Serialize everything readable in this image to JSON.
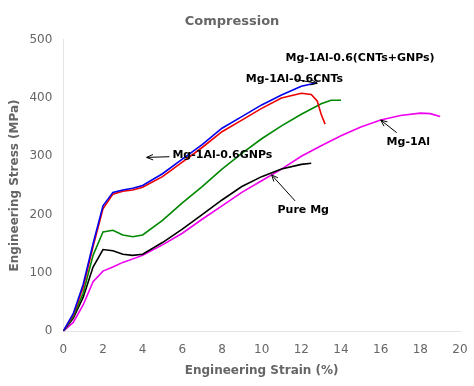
{
  "chart_data": {
    "type": "line",
    "title": "Compression",
    "xlabel": "Engineering Strain (%)",
    "ylabel": "Engineering Stress (MPa)",
    "xlim": [
      0,
      20
    ],
    "ylim": [
      0,
      500
    ],
    "xticks": [
      0,
      2,
      4,
      6,
      8,
      10,
      12,
      14,
      16,
      18,
      20
    ],
    "yticks": [
      0,
      100,
      200,
      300,
      400,
      500
    ],
    "grid": false,
    "series": [
      {
        "color": "#0000EE",
        "x": [
          0,
          0.5,
          1.0,
          1.5,
          2.0,
          2.5,
          3.0,
          3.5,
          4.0,
          5.0,
          6.0,
          7.0,
          8.0,
          9.0,
          10.0,
          11.0,
          12.0,
          12.8
        ],
        "values": [
          0,
          30,
          80,
          150,
          215,
          238,
          242,
          245,
          250,
          270,
          295,
          320,
          348,
          368,
          388,
          405,
          420,
          426
        ]
      },
      {
        "color": "#EE0000",
        "x": [
          0,
          0.5,
          1.0,
          1.5,
          2.0,
          2.5,
          3.0,
          3.5,
          4.0,
          5.0,
          6.0,
          7.0,
          8.0,
          9.0,
          10.0,
          11.0,
          12.0,
          12.5,
          12.8,
          13.0,
          13.2
        ],
        "values": [
          0,
          28,
          75,
          145,
          210,
          235,
          240,
          242,
          247,
          265,
          290,
          315,
          342,
          362,
          382,
          400,
          408,
          406,
          395,
          372,
          355
        ]
      },
      {
        "color": "#008800",
        "x": [
          0,
          0.5,
          1.0,
          1.5,
          2.0,
          2.5,
          3.0,
          3.5,
          4.0,
          5.0,
          6.0,
          7.0,
          8.0,
          9.0,
          10.0,
          11.0,
          12.0,
          13.0,
          13.5,
          14.0
        ],
        "values": [
          0,
          25,
          65,
          130,
          170,
          173,
          165,
          162,
          165,
          190,
          220,
          248,
          278,
          305,
          330,
          352,
          372,
          390,
          396,
          396
        ]
      },
      {
        "color": "#000000",
        "x": [
          0,
          0.5,
          1.0,
          1.5,
          2.0,
          2.5,
          3.0,
          3.5,
          4.0,
          5.0,
          6.0,
          7.0,
          8.0,
          9.0,
          10.0,
          11.0,
          12.0,
          12.5
        ],
        "values": [
          0,
          22,
          58,
          110,
          140,
          138,
          132,
          130,
          132,
          152,
          175,
          200,
          225,
          248,
          265,
          278,
          286,
          288
        ]
      },
      {
        "color": "#EE00EE",
        "x": [
          0,
          0.5,
          1.0,
          1.5,
          2.0,
          2.5,
          3.0,
          4.0,
          5.0,
          6.0,
          7.0,
          8.0,
          9.0,
          10.0,
          11.0,
          12.0,
          13.0,
          14.0,
          15.0,
          16.0,
          17.0,
          18.0,
          18.5,
          19.0
        ],
        "values": [
          0,
          15,
          45,
          85,
          103,
          110,
          118,
          130,
          148,
          168,
          192,
          215,
          238,
          258,
          278,
          300,
          318,
          335,
          350,
          362,
          370,
          374,
          373,
          368
        ]
      }
    ],
    "annotations": [
      {
        "text": "Mg-1Al-0.6(CNTs+GNPs)",
        "x": 11.2,
        "y": 468
      },
      {
        "text": "Mg-1Al-0.6CNTs",
        "x": 9.2,
        "y": 432,
        "arrow": {
          "x": 12.8,
          "y": 425
        }
      },
      {
        "text": "Mg-1Al-0.6GNPs",
        "x": 5.5,
        "y": 302,
        "arrow": {
          "x": 4.2,
          "y": 298
        }
      },
      {
        "text": "Pure Mg",
        "x": 10.8,
        "y": 208,
        "arrow": {
          "x": 10.5,
          "y": 268
        }
      },
      {
        "text": "Mg-1Al",
        "x": 16.3,
        "y": 325,
        "arrow": {
          "x": 16.0,
          "y": 362
        }
      }
    ]
  }
}
